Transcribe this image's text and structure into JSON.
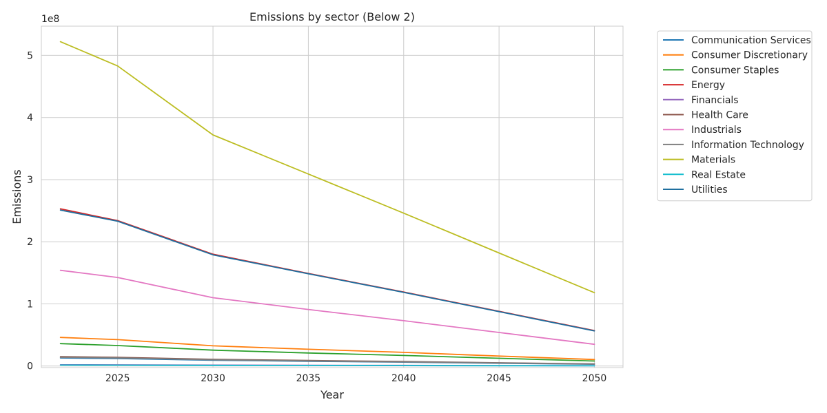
{
  "chart_data": {
    "type": "line",
    "title": "Emissions by sector (Below 2)",
    "xlabel": "Year",
    "ylabel": "Emissions",
    "y_scale_label": "1e8",
    "xlim": [
      2021,
      2051.5
    ],
    "ylim": [
      -2500000,
      547000000
    ],
    "x_ticks": [
      2025,
      2030,
      2035,
      2040,
      2045,
      2050
    ],
    "y_ticks": [
      0,
      100000000,
      200000000,
      300000000,
      400000000,
      500000000
    ],
    "y_tick_labels": [
      "0",
      "1",
      "2",
      "3",
      "4",
      "5"
    ],
    "grid": true,
    "legend_position": "outside-right",
    "x": [
      2022,
      2025,
      2030,
      2035,
      2040,
      2045,
      2050
    ],
    "series": [
      {
        "name": "Communication Services",
        "color": "#1f77b4",
        "values": [
          13000000,
          12000000,
          9300000,
          7700000,
          6200000,
          4500000,
          2900000
        ]
      },
      {
        "name": "Consumer Discretionary",
        "color": "#ff7f0e",
        "values": [
          46000000,
          42500000,
          32500000,
          27000000,
          22000000,
          16000000,
          10500000
        ]
      },
      {
        "name": "Consumer Staples",
        "color": "#2ca02c",
        "values": [
          36000000,
          33000000,
          25500000,
          21000000,
          17000000,
          12500000,
          8000000
        ]
      },
      {
        "name": "Energy",
        "color": "#d62728",
        "values": [
          253000000,
          234000000,
          180000000,
          149000000,
          119000000,
          88000000,
          57000000
        ]
      },
      {
        "name": "Financials",
        "color": "#9467bd",
        "values": [
          2000000,
          1900000,
          1500000,
          1200000,
          1000000,
          700000,
          500000
        ]
      },
      {
        "name": "Health Care",
        "color": "#8c564b",
        "values": [
          15000000,
          14000000,
          10800000,
          8900000,
          7200000,
          5200000,
          3400000
        ]
      },
      {
        "name": "Industrials",
        "color": "#e377c2",
        "values": [
          154000000,
          142500000,
          110000000,
          91000000,
          73000000,
          54000000,
          35000000
        ]
      },
      {
        "name": "Information Technology",
        "color": "#7f7f7f",
        "values": [
          14000000,
          13000000,
          10000000,
          8300000,
          6700000,
          4900000,
          3200000
        ]
      },
      {
        "name": "Materials",
        "color": "#bcbd22",
        "values": [
          522000000,
          483000000,
          372000000,
          309000000,
          246000000,
          182000000,
          118000000
        ]
      },
      {
        "name": "Real Estate",
        "color": "#17becf",
        "values": [
          1500000,
          1400000,
          1100000,
          900000,
          700000,
          500000,
          400000
        ]
      },
      {
        "name": "Utilities",
        "color": "#1f6f9f",
        "values": [
          251000000,
          233000000,
          179000000,
          148500000,
          118500000,
          87500000,
          56500000
        ]
      }
    ]
  }
}
